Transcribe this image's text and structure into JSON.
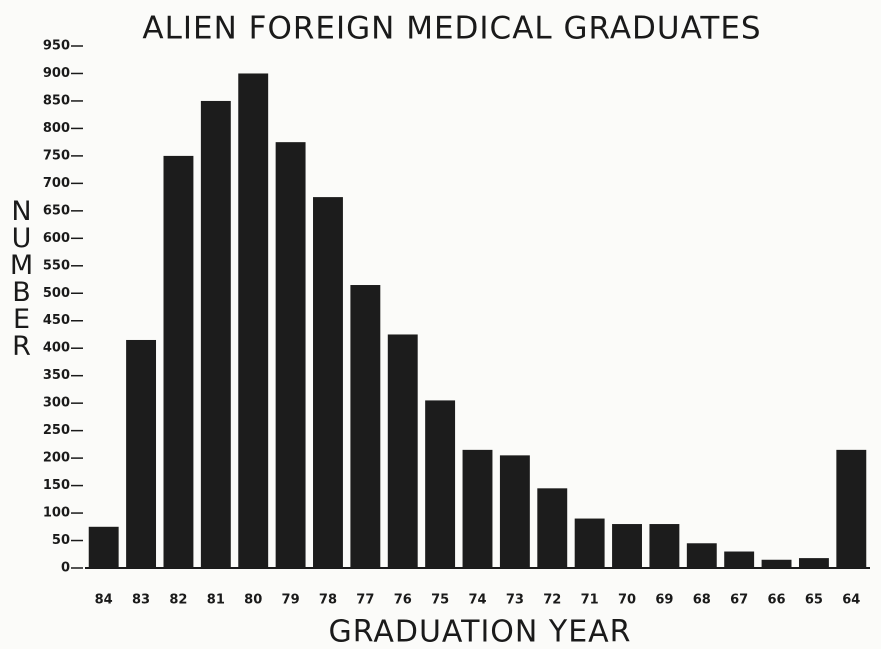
{
  "chart_data": {
    "type": "bar",
    "title": "ALIEN FOREIGN MEDICAL GRADUATES",
    "x_label": "GRADUATION YEAR",
    "y_label": "NUMBER",
    "categories": [
      "84",
      "83",
      "82",
      "81",
      "80",
      "79",
      "78",
      "77",
      "76",
      "75",
      "74",
      "73",
      "72",
      "71",
      "70",
      "69",
      "68",
      "67",
      "66",
      "65",
      "64"
    ],
    "values": [
      75,
      415,
      750,
      850,
      900,
      775,
      675,
      515,
      425,
      305,
      215,
      205,
      145,
      90,
      80,
      80,
      45,
      30,
      15,
      18,
      215
    ],
    "color": "#1c1c1c",
    "ylim": [
      0,
      950
    ],
    "yticks": [
      0,
      50,
      100,
      150,
      200,
      250,
      300,
      350,
      400,
      450,
      500,
      550,
      600,
      650,
      700,
      750,
      800,
      850,
      900,
      950
    ]
  }
}
